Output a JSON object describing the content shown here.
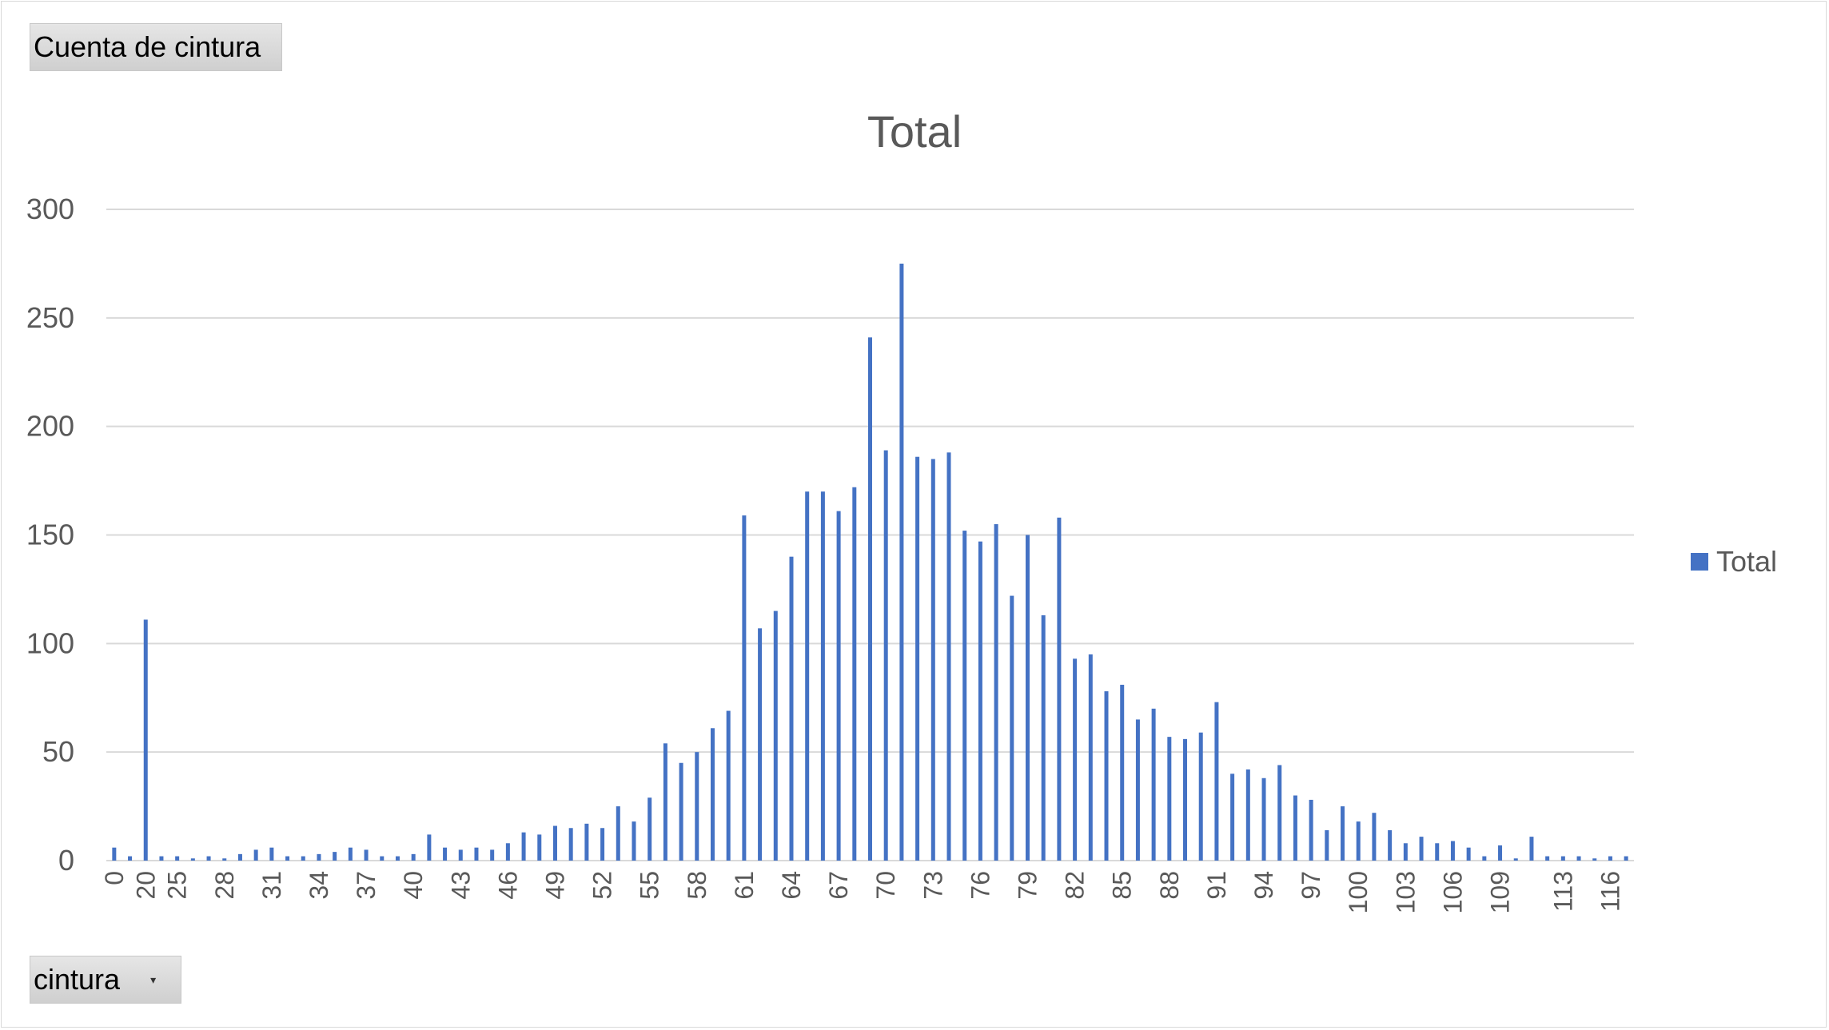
{
  "pivot": {
    "value_field_label": "Cuenta de cintura",
    "axis_field_label": "cintura",
    "axis_field_dropdown_icon": "dropdown-arrow-icon"
  },
  "chart_data": {
    "type": "bar",
    "title": "Total",
    "xlabel": "",
    "ylabel": "",
    "ylim": [
      0,
      300
    ],
    "yticks": [
      0,
      50,
      100,
      150,
      200,
      250,
      300
    ],
    "grid": true,
    "legend_position": "right",
    "color": "#4472c4",
    "categories": [
      "0",
      "19",
      "20",
      "24",
      "25",
      "26",
      "27",
      "28",
      "29",
      "30",
      "31",
      "32",
      "33",
      "34",
      "35",
      "36",
      "37",
      "38",
      "39",
      "40",
      "41",
      "42",
      "43",
      "44",
      "45",
      "46",
      "47",
      "48",
      "49",
      "50",
      "51",
      "52",
      "53",
      "54",
      "55",
      "56",
      "57",
      "58",
      "59",
      "60",
      "61",
      "62",
      "63",
      "64",
      "65",
      "66",
      "67",
      "68",
      "69",
      "70",
      "71",
      "72",
      "73",
      "74",
      "75",
      "76",
      "77",
      "78",
      "79",
      "80",
      "81",
      "82",
      "83",
      "84",
      "85",
      "86",
      "87",
      "88",
      "89",
      "90",
      "91",
      "92",
      "93",
      "94",
      "95",
      "96",
      "97",
      "98",
      "99",
      "100",
      "101",
      "102",
      "103",
      "104",
      "105",
      "106",
      "107",
      "108",
      "109",
      "110",
      "111",
      "112",
      "113",
      "114",
      "115",
      "116",
      "117"
    ],
    "x_tick_labels": [
      "0",
      "20",
      "25",
      "28",
      "31",
      "34",
      "37",
      "40",
      "43",
      "46",
      "49",
      "52",
      "55",
      "58",
      "61",
      "64",
      "67",
      "70",
      "73",
      "76",
      "79",
      "82",
      "85",
      "88",
      "91",
      "94",
      "97",
      "100",
      "103",
      "106",
      "109",
      "113",
      "116"
    ],
    "series": [
      {
        "name": "Total",
        "values": [
          6,
          2,
          111,
          2,
          2,
          1,
          2,
          1,
          3,
          5,
          6,
          2,
          2,
          3,
          4,
          6,
          5,
          2,
          2,
          3,
          12,
          6,
          5,
          6,
          5,
          8,
          13,
          12,
          16,
          15,
          17,
          15,
          25,
          18,
          29,
          54,
          45,
          50,
          61,
          69,
          159,
          107,
          115,
          140,
          170,
          170,
          161,
          172,
          241,
          189,
          275,
          186,
          185,
          188,
          152,
          147,
          155,
          122,
          150,
          113,
          158,
          93,
          95,
          78,
          81,
          65,
          70,
          57,
          56,
          59,
          73,
          40,
          42,
          38,
          44,
          30,
          28,
          14,
          25,
          18,
          22,
          14,
          8,
          11,
          8,
          9,
          6,
          2,
          7,
          1,
          11,
          2,
          2,
          2,
          1,
          2,
          2
        ]
      }
    ]
  }
}
